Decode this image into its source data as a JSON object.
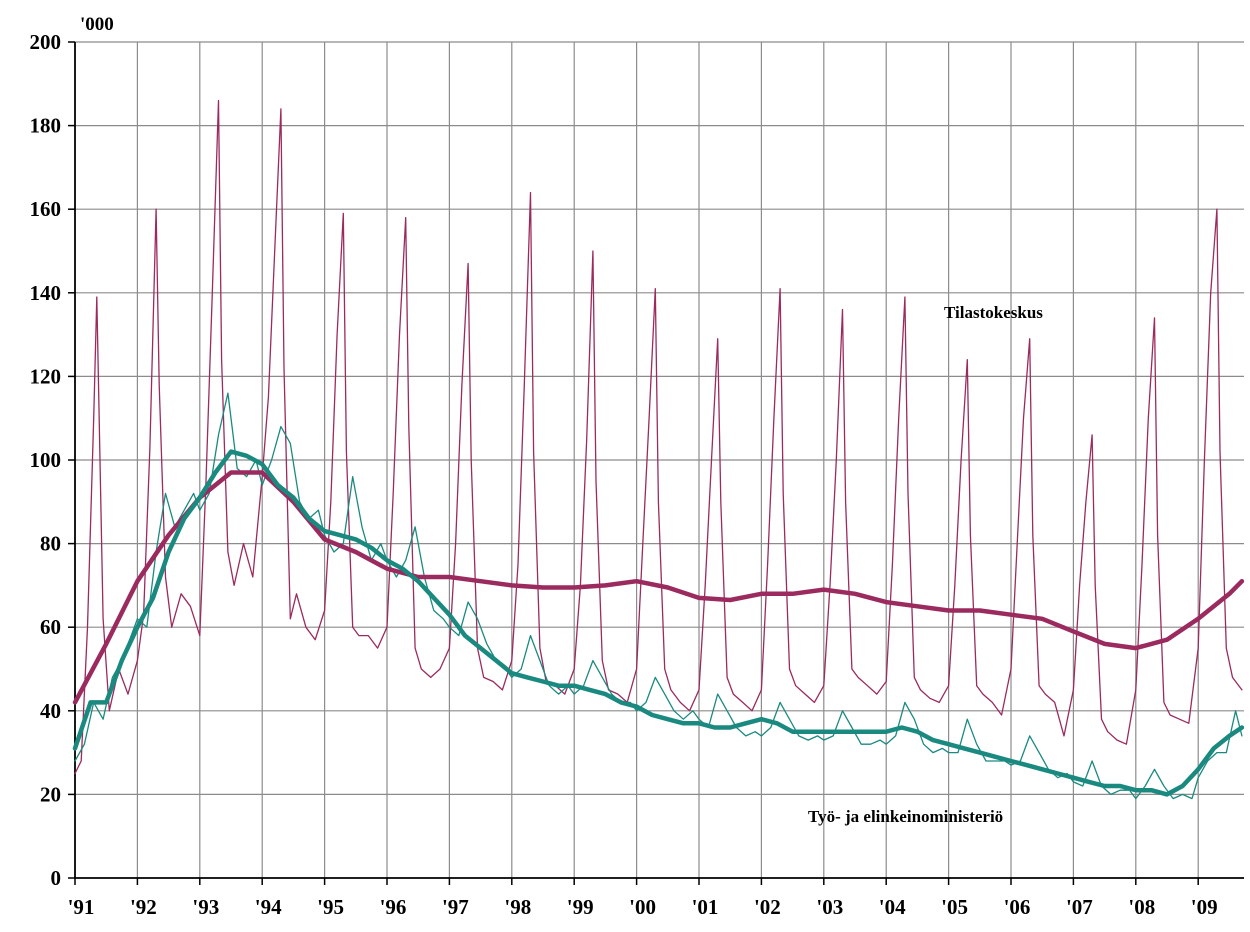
{
  "chart_data": {
    "type": "line",
    "title": "",
    "unit_label": "'000",
    "xlabel": "",
    "ylabel": "",
    "ylim": [
      0,
      200
    ],
    "y_ticks": [
      0,
      20,
      40,
      60,
      80,
      100,
      120,
      140,
      160,
      180,
      200
    ],
    "x_ticks": [
      "'91",
      "'92",
      "'93",
      "'94",
      "'95",
      "'96",
      "'97",
      "'98",
      "'99",
      "'00",
      "'01",
      "'02",
      "'03",
      "'04",
      "'05",
      "'06",
      "'07",
      "'08",
      "'09"
    ],
    "x_start_year": 1991,
    "grid": true,
    "legend": "none",
    "colors": {
      "tilastokeskus": "#9b2a5e",
      "tem": "#1a8a80"
    },
    "annotations": [
      {
        "text": "Tilastokeskus",
        "series": "tilastokeskus"
      },
      {
        "text": "Työ- ja elinkeinoministeriö",
        "series": "tem"
      }
    ],
    "series": [
      {
        "key": "tk_trend",
        "name": "Tilastokeskus",
        "style": "trend",
        "color": "#9b2a5e",
        "x": [
          1991.0,
          1991.5,
          1992.0,
          1992.5,
          1993.0,
          1993.5,
          1994.0,
          1994.5,
          1995.0,
          1995.5,
          1996.0,
          1996.5,
          1997.0,
          1997.5,
          1998.0,
          1998.5,
          1999.0,
          1999.5,
          2000.0,
          2000.5,
          2001.0,
          2001.5,
          2002.0,
          2002.5,
          2003.0,
          2003.5,
          2004.0,
          2004.5,
          2005.0,
          2005.5,
          2006.0,
          2006.5,
          2007.0,
          2007.5,
          2008.0,
          2008.5,
          2009.0,
          2009.5,
          2009.7
        ],
        "values": [
          42,
          56,
          71,
          82,
          91,
          97,
          97,
          90,
          81,
          78,
          74,
          72,
          72,
          71,
          70,
          69.5,
          69.5,
          70,
          71,
          69.5,
          67,
          66.5,
          68,
          68,
          69,
          68,
          66,
          65,
          64,
          64,
          63,
          62,
          59,
          56,
          55,
          57,
          62,
          68,
          71
        ]
      },
      {
        "key": "tk_raw",
        "name": "Tilastokeskus",
        "style": "raw",
        "color": "#9b2a5e",
        "x": [
          1991.0,
          1991.1,
          1991.2,
          1991.3,
          1991.35,
          1991.45,
          1991.55,
          1991.7,
          1991.85,
          1992.0,
          1992.1,
          1992.2,
          1992.3,
          1992.35,
          1992.45,
          1992.55,
          1992.7,
          1992.85,
          1993.0,
          1993.1,
          1993.2,
          1993.3,
          1993.35,
          1993.45,
          1993.55,
          1993.7,
          1993.85,
          1994.0,
          1994.1,
          1994.2,
          1994.3,
          1994.35,
          1994.45,
          1994.55,
          1994.7,
          1994.85,
          1995.0,
          1995.1,
          1995.2,
          1995.3,
          1995.35,
          1995.45,
          1995.55,
          1995.7,
          1995.85,
          1996.0,
          1996.1,
          1996.2,
          1996.3,
          1996.35,
          1996.45,
          1996.55,
          1996.7,
          1996.85,
          1997.0,
          1997.1,
          1997.2,
          1997.3,
          1997.35,
          1997.45,
          1997.55,
          1997.7,
          1997.85,
          1998.0,
          1998.1,
          1998.2,
          1998.3,
          1998.35,
          1998.45,
          1998.55,
          1998.7,
          1998.85,
          1999.0,
          1999.1,
          1999.2,
          1999.3,
          1999.35,
          1999.45,
          1999.55,
          1999.7,
          1999.85,
          2000.0,
          2000.1,
          2000.2,
          2000.3,
          2000.35,
          2000.45,
          2000.55,
          2000.7,
          2000.85,
          2001.0,
          2001.1,
          2001.2,
          2001.3,
          2001.35,
          2001.45,
          2001.55,
          2001.7,
          2001.85,
          2002.0,
          2002.1,
          2002.2,
          2002.3,
          2002.35,
          2002.45,
          2002.55,
          2002.7,
          2002.85,
          2003.0,
          2003.1,
          2003.2,
          2003.3,
          2003.35,
          2003.45,
          2003.55,
          2003.7,
          2003.85,
          2004.0,
          2004.1,
          2004.2,
          2004.3,
          2004.35,
          2004.45,
          2004.55,
          2004.7,
          2004.85,
          2005.0,
          2005.1,
          2005.2,
          2005.3,
          2005.35,
          2005.45,
          2005.55,
          2005.7,
          2005.85,
          2006.0,
          2006.1,
          2006.2,
          2006.3,
          2006.35,
          2006.45,
          2006.55,
          2006.7,
          2006.85,
          2007.0,
          2007.1,
          2007.2,
          2007.3,
          2007.35,
          2007.45,
          2007.55,
          2007.7,
          2007.85,
          2008.0,
          2008.1,
          2008.2,
          2008.3,
          2008.35,
          2008.45,
          2008.55,
          2008.7,
          2008.85,
          2009.0,
          2009.1,
          2009.2,
          2009.3,
          2009.35,
          2009.45,
          2009.55,
          2009.7
        ],
        "values": [
          25,
          28,
          60,
          110,
          139,
          62,
          40,
          50,
          44,
          52,
          63,
          103,
          160,
          118,
          72,
          60,
          68,
          65,
          58,
          95,
          140,
          186,
          124,
          78,
          70,
          80,
          72,
          96,
          115,
          150,
          184,
          122,
          62,
          68,
          60,
          57,
          64,
          90,
          130,
          159,
          102,
          60,
          58,
          58,
          55,
          60,
          92,
          130,
          158,
          108,
          55,
          50,
          48,
          50,
          55,
          80,
          118,
          147,
          100,
          55,
          48,
          47,
          45,
          52,
          75,
          118,
          164,
          102,
          55,
          47,
          46,
          44,
          50,
          70,
          105,
          150,
          95,
          52,
          45,
          44,
          42,
          50,
          80,
          110,
          141,
          90,
          50,
          45,
          42,
          40,
          45,
          70,
          100,
          129,
          90,
          48,
          44,
          42,
          40,
          45,
          75,
          110,
          141,
          92,
          50,
          46,
          44,
          42,
          46,
          70,
          100,
          136,
          90,
          50,
          48,
          46,
          44,
          47,
          75,
          110,
          139,
          92,
          48,
          45,
          43,
          42,
          46,
          70,
          100,
          124,
          82,
          46,
          44,
          42,
          39,
          50,
          80,
          110,
          129,
          82,
          46,
          44,
          42,
          34,
          45,
          70,
          90,
          106,
          70,
          38,
          35,
          33,
          32,
          45,
          75,
          110,
          134,
          82,
          42,
          39,
          38,
          37,
          55,
          100,
          140,
          160,
          102,
          55,
          48,
          45
        ]
      },
      {
        "key": "tem_trend",
        "name": "Työ- ja elinkeinoministeriö",
        "style": "trend",
        "color": "#1a8a80",
        "x": [
          1991.0,
          1991.25,
          1991.5,
          1991.75,
          1992.0,
          1992.25,
          1992.5,
          1992.75,
          1993.0,
          1993.25,
          1993.5,
          1993.75,
          1994.0,
          1994.25,
          1994.5,
          1994.75,
          1995.0,
          1995.25,
          1995.5,
          1995.75,
          1996.0,
          1996.25,
          1996.5,
          1996.75,
          1997.0,
          1997.25,
          1997.5,
          1997.75,
          1998.0,
          1998.25,
          1998.5,
          1998.75,
          1999.0,
          1999.25,
          1999.5,
          1999.75,
          2000.0,
          2000.25,
          2000.5,
          2000.75,
          2001.0,
          2001.25,
          2001.5,
          2001.75,
          2002.0,
          2002.25,
          2002.5,
          2002.75,
          2003.0,
          2003.25,
          2003.5,
          2003.75,
          2004.0,
          2004.25,
          2004.5,
          2004.75,
          2005.0,
          2005.25,
          2005.5,
          2005.75,
          2006.0,
          2006.25,
          2006.5,
          2006.75,
          2007.0,
          2007.25,
          2007.5,
          2007.75,
          2008.0,
          2008.25,
          2008.5,
          2008.75,
          2009.0,
          2009.25,
          2009.5,
          2009.7
        ],
        "values": [
          31,
          42,
          42,
          52,
          60,
          67,
          78,
          86,
          91,
          97,
          102,
          101,
          99,
          94,
          91,
          86,
          83,
          82,
          81,
          79,
          76,
          74,
          71,
          67,
          63,
          58,
          55,
          52,
          49,
          48,
          47,
          46,
          46,
          45,
          44,
          42,
          41,
          39,
          38,
          37,
          37,
          36,
          36,
          37,
          38,
          37,
          35,
          35,
          35,
          35,
          35,
          35,
          35,
          36,
          35,
          33,
          32,
          31,
          30,
          29,
          28,
          27,
          26,
          25,
          24,
          23,
          22,
          22,
          21,
          21,
          20,
          22,
          26,
          31,
          34,
          36
        ]
      },
      {
        "key": "tem_raw",
        "name": "Työ- ja elinkeinoministeriö",
        "style": "raw",
        "color": "#1a8a80",
        "x": [
          1991.0,
          1991.15,
          1991.3,
          1991.45,
          1991.6,
          1991.75,
          1991.9,
          1992.0,
          1992.15,
          1992.3,
          1992.45,
          1992.6,
          1992.75,
          1992.9,
          1993.0,
          1993.15,
          1993.3,
          1993.45,
          1993.6,
          1993.75,
          1993.9,
          1994.0,
          1994.15,
          1994.3,
          1994.45,
          1994.6,
          1994.75,
          1994.9,
          1995.0,
          1995.15,
          1995.3,
          1995.45,
          1995.6,
          1995.75,
          1995.9,
          1996.0,
          1996.15,
          1996.3,
          1996.45,
          1996.6,
          1996.75,
          1996.9,
          1997.0,
          1997.15,
          1997.3,
          1997.45,
          1997.6,
          1997.75,
          1997.9,
          1998.0,
          1998.15,
          1998.3,
          1998.45,
          1998.6,
          1998.75,
          1998.9,
          1999.0,
          1999.15,
          1999.3,
          1999.45,
          1999.6,
          1999.75,
          1999.9,
          2000.0,
          2000.15,
          2000.3,
          2000.45,
          2000.6,
          2000.75,
          2000.9,
          2001.0,
          2001.15,
          2001.3,
          2001.45,
          2001.6,
          2001.75,
          2001.9,
          2002.0,
          2002.15,
          2002.3,
          2002.45,
          2002.6,
          2002.75,
          2002.9,
          2003.0,
          2003.15,
          2003.3,
          2003.45,
          2003.6,
          2003.75,
          2003.9,
          2004.0,
          2004.15,
          2004.3,
          2004.45,
          2004.6,
          2004.75,
          2004.9,
          2005.0,
          2005.15,
          2005.3,
          2005.45,
          2005.6,
          2005.75,
          2005.9,
          2006.0,
          2006.15,
          2006.3,
          2006.45,
          2006.6,
          2006.75,
          2006.9,
          2007.0,
          2007.15,
          2007.3,
          2007.45,
          2007.6,
          2007.75,
          2007.9,
          2008.0,
          2008.15,
          2008.3,
          2008.45,
          2008.6,
          2008.75,
          2008.9,
          2009.0,
          2009.15,
          2009.3,
          2009.45,
          2009.6,
          2009.7
        ],
        "values": [
          28,
          32,
          42,
          38,
          48,
          52,
          58,
          62,
          60,
          78,
          92,
          84,
          88,
          92,
          88,
          92,
          106,
          116,
          98,
          96,
          100,
          94,
          100,
          108,
          104,
          90,
          86,
          88,
          82,
          78,
          80,
          96,
          84,
          76,
          80,
          76,
          72,
          76,
          84,
          72,
          64,
          62,
          60,
          58,
          66,
          62,
          56,
          52,
          50,
          48,
          50,
          58,
          52,
          46,
          44,
          46,
          44,
          46,
          52,
          48,
          44,
          42,
          42,
          40,
          42,
          48,
          44,
          40,
          38,
          40,
          38,
          36,
          44,
          40,
          36,
          34,
          35,
          34,
          36,
          42,
          38,
          34,
          33,
          34,
          33,
          34,
          40,
          36,
          32,
          32,
          33,
          32,
          34,
          42,
          38,
          32,
          30,
          31,
          30,
          30,
          38,
          32,
          28,
          28,
          28,
          27,
          28,
          34,
          30,
          26,
          24,
          25,
          23,
          22,
          28,
          22,
          20,
          21,
          21,
          19,
          22,
          26,
          22,
          19,
          20,
          19,
          24,
          28,
          30,
          30,
          40,
          34
        ]
      }
    ]
  }
}
